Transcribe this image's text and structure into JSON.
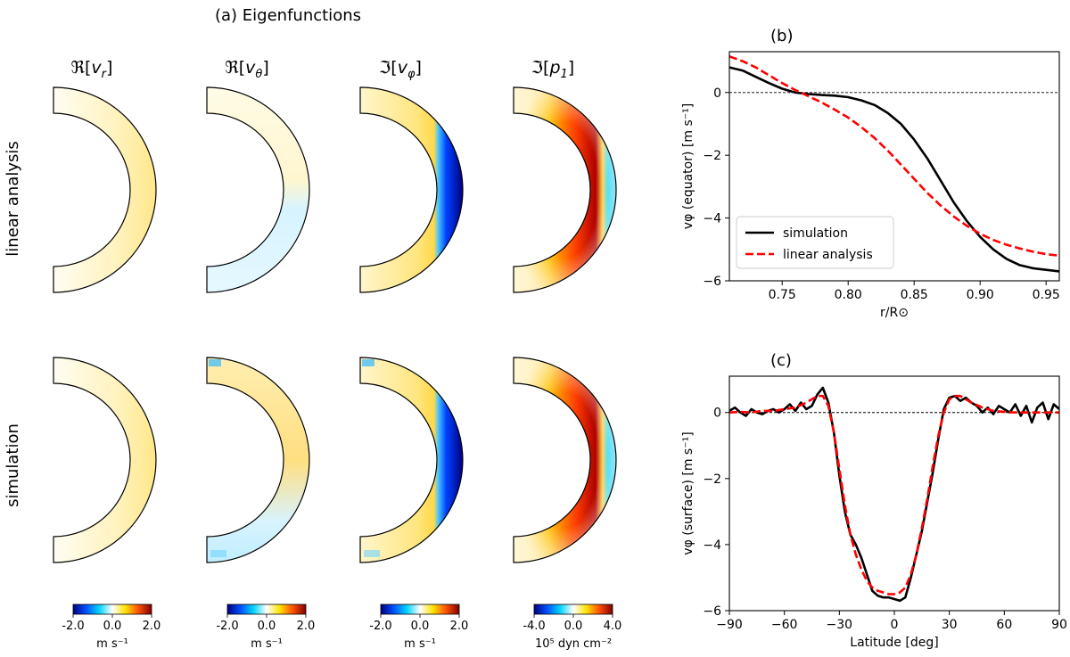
{
  "figure": {
    "panel_a_title": "(a) Eigenfunctions",
    "column_labels": [
      "ℜ[v_r]",
      "ℜ[v_θ]",
      "ℑ[v_φ]",
      "ℑ[p_1]"
    ],
    "column_labels_main": [
      "ℜ[",
      "ℜ[",
      "ℑ[",
      "ℑ["
    ],
    "column_labels_var": [
      "v",
      "v",
      "v",
      "p"
    ],
    "column_labels_sub": [
      "r",
      "θ",
      "φ",
      "1"
    ],
    "row_labels": [
      "linear analysis",
      "simulation"
    ],
    "colorbars": [
      {
        "ticks": [
          "-2.0",
          "0.0",
          "2.0"
        ],
        "unit": "m s⁻¹"
      },
      {
        "ticks": [
          "-2.0",
          "0.0",
          "2.0"
        ],
        "unit": "m s⁻¹"
      },
      {
        "ticks": [
          "-2.0",
          "0.0",
          "2.0"
        ],
        "unit": "m s⁻¹"
      },
      {
        "ticks": [
          "-4.0",
          "0.0",
          "4.0"
        ],
        "unit": "10⁵ dyn cm⁻²"
      }
    ],
    "cmap_colors": [
      "#00007f",
      "#0050ff",
      "#00d5ff",
      "#ffffff",
      "#ffe300",
      "#ff5000",
      "#7f0000"
    ]
  },
  "chart_data": [
    {
      "id": "b",
      "panel_label": "(b)",
      "type": "line",
      "xlabel": "r/R⊙",
      "ylabel": "vφ (equator) [m s⁻¹]",
      "xlim": [
        0.71,
        0.96
      ],
      "ylim": [
        -6,
        1.3
      ],
      "xticks": [
        0.75,
        0.8,
        0.85,
        0.9,
        0.95
      ],
      "xtick_labels": [
        "0.75",
        "0.80",
        "0.85",
        "0.90",
        "0.95"
      ],
      "yticks": [
        0,
        -2,
        -4,
        -6
      ],
      "ytick_labels": [
        "0",
        "−2",
        "−4",
        "−6"
      ],
      "legend": [
        "simulation",
        "linear analysis"
      ],
      "legend_position": "bottom-left",
      "series": [
        {
          "name": "simulation",
          "color": "#000000",
          "style": "solid",
          "x": [
            0.71,
            0.72,
            0.73,
            0.74,
            0.75,
            0.76,
            0.77,
            0.78,
            0.79,
            0.8,
            0.81,
            0.82,
            0.83,
            0.84,
            0.85,
            0.86,
            0.87,
            0.88,
            0.89,
            0.9,
            0.91,
            0.92,
            0.93,
            0.94,
            0.95,
            0.96
          ],
          "y": [
            0.8,
            0.7,
            0.5,
            0.3,
            0.12,
            0.0,
            -0.05,
            -0.08,
            -0.1,
            -0.15,
            -0.25,
            -0.4,
            -0.65,
            -1.0,
            -1.5,
            -2.1,
            -2.8,
            -3.5,
            -4.1,
            -4.6,
            -5.0,
            -5.3,
            -5.5,
            -5.6,
            -5.65,
            -5.7
          ]
        },
        {
          "name": "linear analysis",
          "color": "#ff0000",
          "style": "dashed",
          "x": [
            0.71,
            0.72,
            0.73,
            0.74,
            0.75,
            0.76,
            0.77,
            0.78,
            0.79,
            0.8,
            0.81,
            0.82,
            0.83,
            0.84,
            0.85,
            0.86,
            0.87,
            0.88,
            0.89,
            0.9,
            0.91,
            0.92,
            0.93,
            0.94,
            0.95,
            0.96
          ],
          "y": [
            1.15,
            1.0,
            0.8,
            0.55,
            0.3,
            0.08,
            -0.12,
            -0.32,
            -0.55,
            -0.8,
            -1.1,
            -1.45,
            -1.85,
            -2.3,
            -2.75,
            -3.2,
            -3.6,
            -3.95,
            -4.25,
            -4.5,
            -4.7,
            -4.85,
            -4.97,
            -5.07,
            -5.15,
            -5.2
          ]
        }
      ]
    },
    {
      "id": "c",
      "panel_label": "(c)",
      "type": "line",
      "xlabel": "Latitude [deg]",
      "ylabel": "vφ (surface) [m s⁻¹]",
      "xlim": [
        -90,
        90
      ],
      "ylim": [
        -6,
        1.1
      ],
      "xticks": [
        -90,
        -60,
        -30,
        0,
        30,
        60,
        90
      ],
      "xtick_labels": [
        "−90",
        "−60",
        "−30",
        "0",
        "30",
        "60",
        "90"
      ],
      "yticks": [
        0,
        -2,
        -4,
        -6
      ],
      "ytick_labels": [
        "0",
        "−2",
        "−4",
        "−6"
      ],
      "series": [
        {
          "name": "simulation",
          "color": "#000000",
          "style": "solid",
          "x": [
            -90,
            -87,
            -84,
            -81,
            -78,
            -75,
            -72,
            -69,
            -66,
            -63,
            -60,
            -57,
            -54,
            -51,
            -48,
            -45,
            -42,
            -39,
            -36,
            -33,
            -30,
            -27,
            -24,
            -21,
            -18,
            -15,
            -12,
            -9,
            -6,
            -3,
            0,
            3,
            6,
            9,
            12,
            15,
            18,
            21,
            24,
            27,
            30,
            33,
            36,
            39,
            42,
            45,
            48,
            51,
            54,
            57,
            60,
            63,
            66,
            69,
            72,
            75,
            78,
            81,
            84,
            87,
            90
          ],
          "y": [
            0.05,
            0.15,
            0.0,
            -0.1,
            0.1,
            0.0,
            -0.05,
            0.05,
            0.1,
            0.0,
            0.1,
            0.25,
            0.05,
            0.3,
            0.1,
            0.2,
            0.55,
            0.75,
            0.3,
            -0.6,
            -1.9,
            -3.0,
            -3.7,
            -4.0,
            -4.4,
            -4.9,
            -5.4,
            -5.55,
            -5.6,
            -5.6,
            -5.65,
            -5.7,
            -5.6,
            -5.0,
            -4.3,
            -3.6,
            -2.7,
            -1.8,
            -0.8,
            0.1,
            0.45,
            0.5,
            0.35,
            0.45,
            0.3,
            0.2,
            0.0,
            0.15,
            -0.05,
            0.2,
            0.1,
            0.0,
            0.25,
            -0.1,
            0.2,
            -0.3,
            0.15,
            0.3,
            -0.2,
            0.25,
            0.1
          ]
        },
        {
          "name": "linear analysis",
          "color": "#ff0000",
          "style": "dashed",
          "x": [
            -90,
            -84,
            -78,
            -72,
            -66,
            -60,
            -54,
            -48,
            -45,
            -42,
            -39,
            -36,
            -33,
            -30,
            -27,
            -24,
            -21,
            -18,
            -15,
            -12,
            -9,
            -6,
            -3,
            0,
            3,
            6,
            9,
            12,
            15,
            18,
            21,
            24,
            27,
            30,
            33,
            36,
            39,
            42,
            48,
            54,
            60,
            66,
            72,
            78,
            84,
            90
          ],
          "y": [
            0.0,
            0.02,
            0.0,
            0.05,
            0.05,
            0.1,
            0.15,
            0.3,
            0.4,
            0.5,
            0.5,
            0.2,
            -0.6,
            -1.7,
            -2.8,
            -3.7,
            -4.3,
            -4.75,
            -5.1,
            -5.3,
            -5.4,
            -5.45,
            -5.5,
            -5.5,
            -5.45,
            -5.3,
            -4.9,
            -4.3,
            -3.5,
            -2.6,
            -1.6,
            -0.7,
            0.0,
            0.4,
            0.5,
            0.5,
            0.4,
            0.3,
            0.15,
            0.05,
            0.02,
            0.0,
            0.0,
            0.0,
            0.0,
            0.0
          ]
        }
      ]
    }
  ]
}
